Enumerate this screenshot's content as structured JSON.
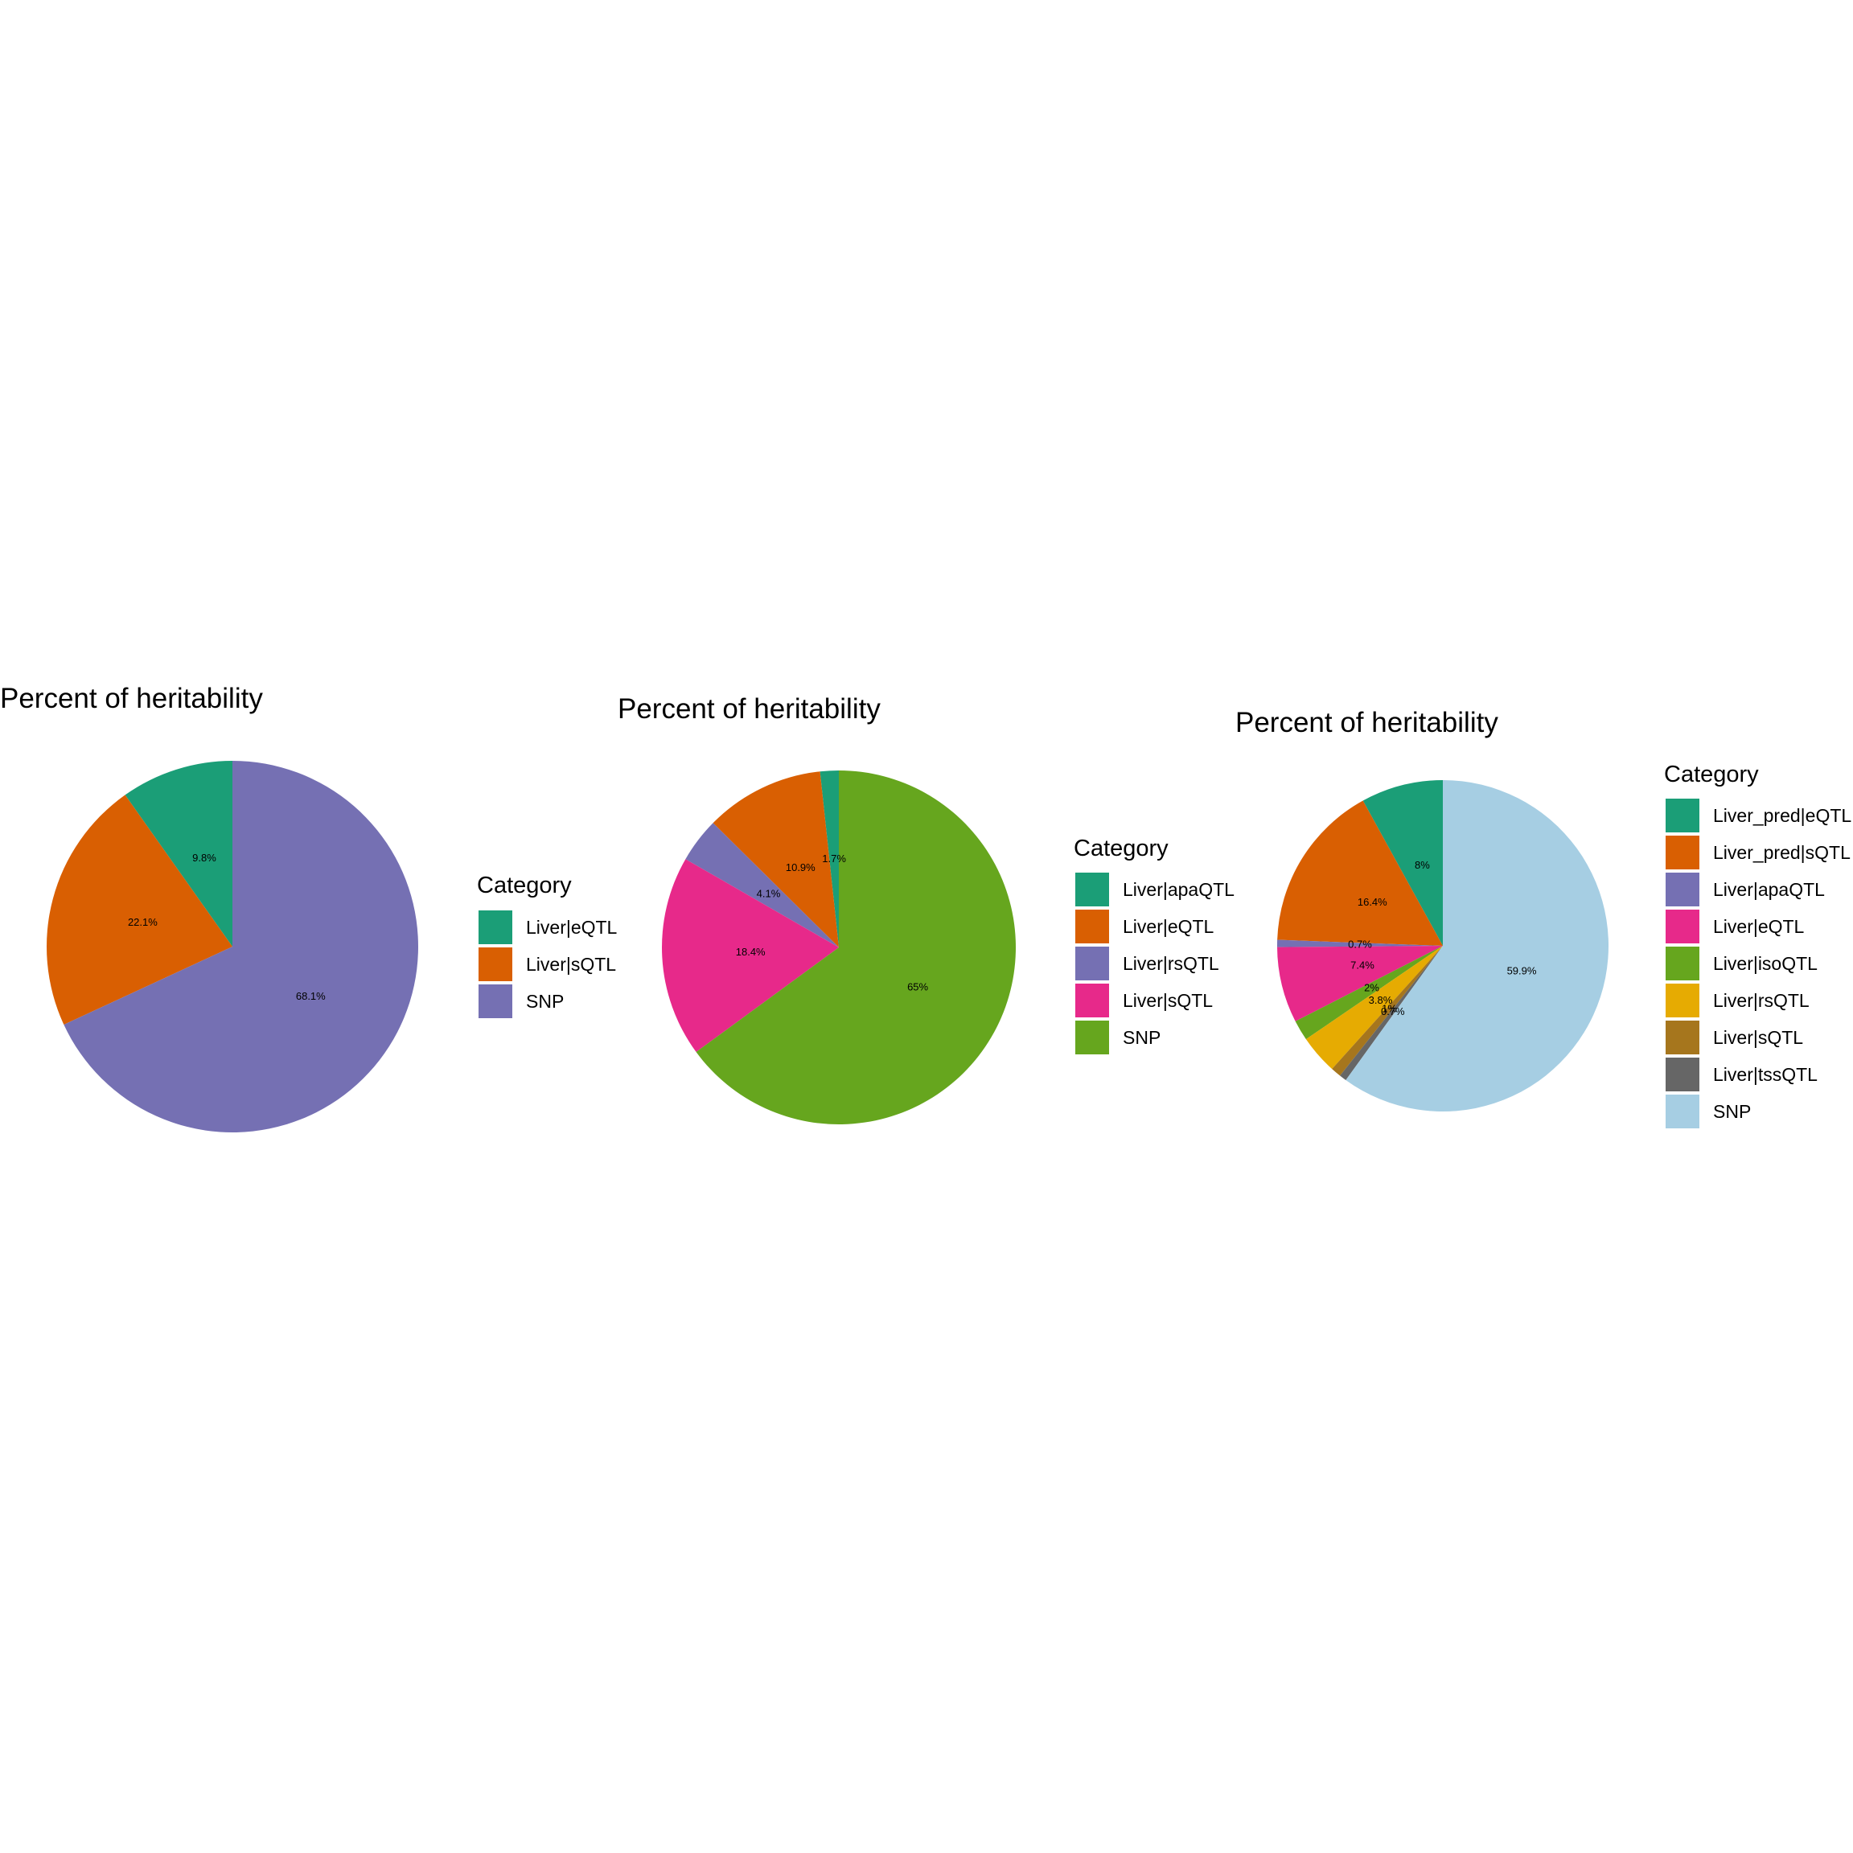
{
  "chart_data": [
    {
      "type": "pie",
      "title": "Percent of heritability",
      "legend_title": "Category",
      "legend_position": "right",
      "slices": [
        {
          "label": "Liver|eQTL",
          "value": 9.8,
          "text": "9.8%",
          "color": "#1B9E77"
        },
        {
          "label": "Liver|sQTL",
          "value": 22.1,
          "text": "22.1%",
          "color": "#D95F02"
        },
        {
          "label": "SNP",
          "value": 68.1,
          "text": "68.1%",
          "color": "#7570B3"
        }
      ]
    },
    {
      "type": "pie",
      "title": "Percent of heritability",
      "legend_title": "Category",
      "legend_position": "right",
      "slices": [
        {
          "label": "Liver|apaQTL",
          "value": 1.7,
          "text": "1.7%",
          "color": "#1B9E77"
        },
        {
          "label": "Liver|eQTL",
          "value": 10.9,
          "text": "10.9%",
          "color": "#D95F02"
        },
        {
          "label": "Liver|rsQTL",
          "value": 4.1,
          "text": "4.1%",
          "color": "#7570B3"
        },
        {
          "label": "Liver|sQTL",
          "value": 18.4,
          "text": "18.4%",
          "color": "#E7298A"
        },
        {
          "label": "SNP",
          "value": 65,
          "text": "65%",
          "color": "#66A61E"
        }
      ]
    },
    {
      "type": "pie",
      "title": "Percent of heritability",
      "legend_title": "Category",
      "legend_position": "right",
      "slices": [
        {
          "label": "Liver_pred|eQTL",
          "value": 8,
          "text": "8%",
          "color": "#1B9E77"
        },
        {
          "label": "Liver_pred|sQTL",
          "value": 16.4,
          "text": "16.4%",
          "color": "#D95F02"
        },
        {
          "label": "Liver|apaQTL",
          "value": 0.7,
          "text": "0.7%",
          "color": "#7570B3"
        },
        {
          "label": "Liver|eQTL",
          "value": 7.4,
          "text": "7.4%",
          "color": "#E7298A"
        },
        {
          "label": "Liver|isoQTL",
          "value": 2,
          "text": "2%",
          "color": "#66A61E"
        },
        {
          "label": "Liver|rsQTL",
          "value": 3.8,
          "text": "3.8%",
          "color": "#E6AB02"
        },
        {
          "label": "Liver|sQTL",
          "value": 1,
          "text": "1%",
          "color": "#A6761D"
        },
        {
          "label": "Liver|tssQTL",
          "value": 0.7,
          "text": "0.7%",
          "color": "#666666"
        },
        {
          "label": "SNP",
          "value": 59.9,
          "text": "59.9%",
          "color": "#A6CEE3"
        }
      ]
    }
  ]
}
